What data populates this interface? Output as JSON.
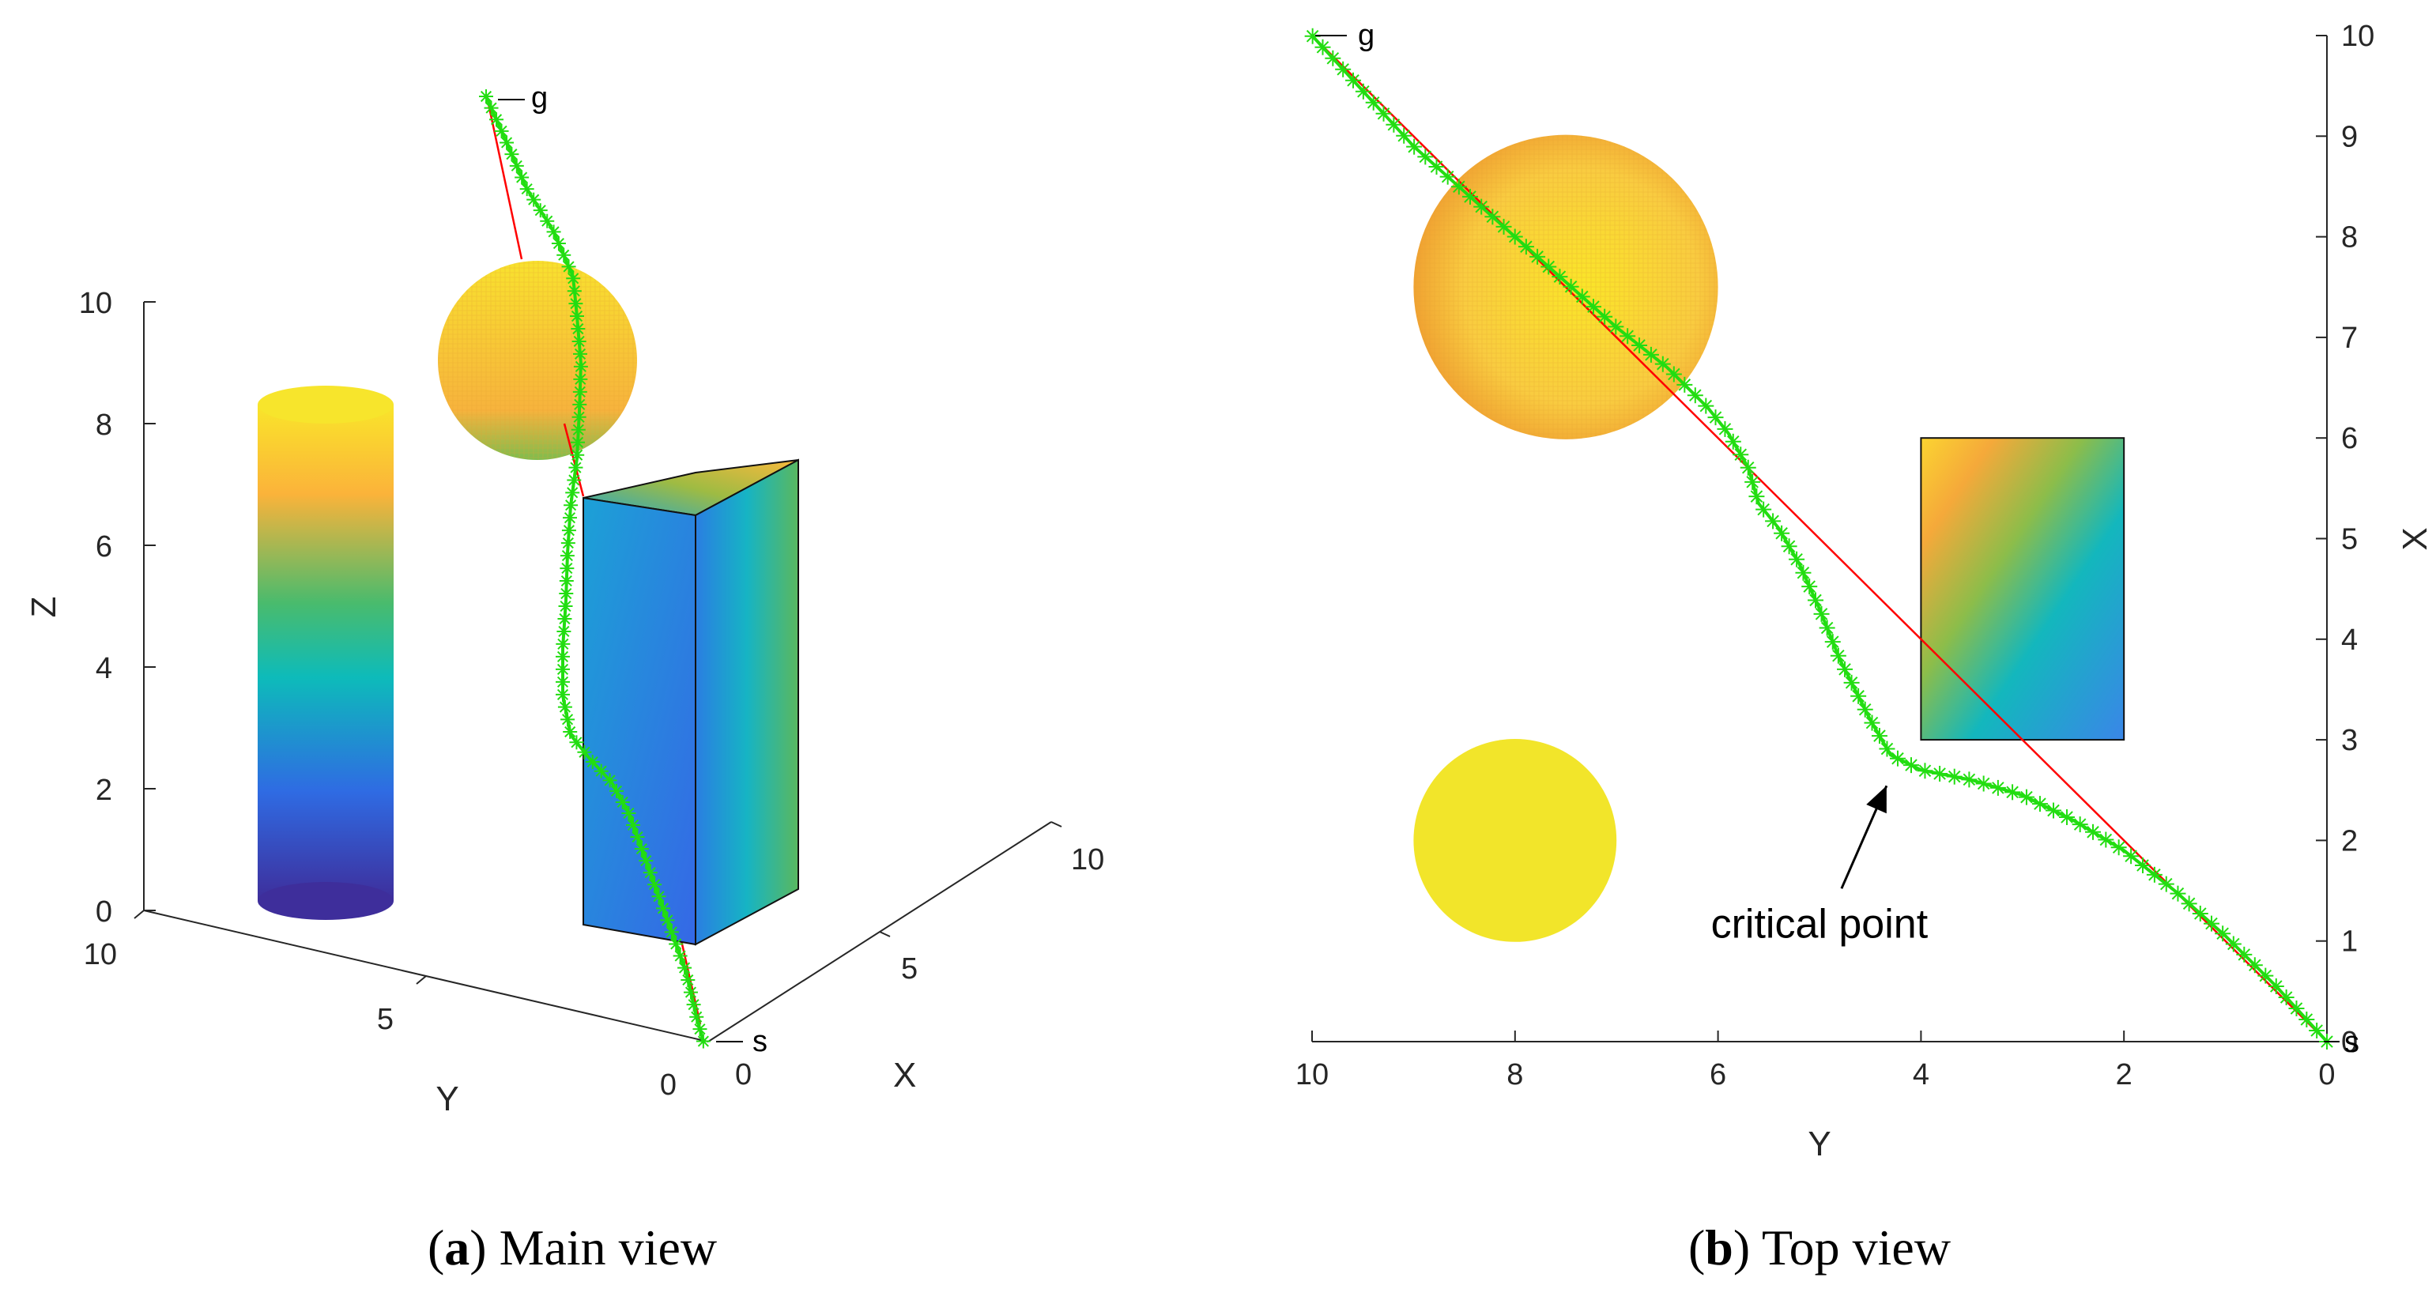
{
  "chart_data": [
    {
      "type": "scatter",
      "view": "3d-main",
      "caption": {
        "letter": "a",
        "text": "Main view"
      },
      "xlabel": "X",
      "ylabel": "Y",
      "zlabel": "Z",
      "xlim": [
        0,
        10
      ],
      "ylim": [
        0,
        10
      ],
      "zlim": [
        0,
        10
      ],
      "x_ticks": [
        "0",
        "5",
        "10"
      ],
      "y_ticks": [
        "0",
        "5",
        "10"
      ],
      "z_ticks": [
        "0",
        "2",
        "4",
        "6",
        "8",
        "10"
      ],
      "grid": false,
      "point_labels": {
        "start": "s",
        "goal": "g"
      },
      "obstacles": [
        {
          "kind": "cylinder",
          "center_x": 2,
          "center_y": 8,
          "radius": 1,
          "z_range": [
            0,
            8.5
          ]
        },
        {
          "kind": "sphere",
          "center_x": 7.5,
          "center_y": 7.5,
          "center_z": 8,
          "radius": 1.5
        },
        {
          "kind": "cuboid",
          "x_range": [
            3,
            6
          ],
          "y_range": [
            2,
            4
          ],
          "z_range": [
            0,
            7
          ]
        }
      ],
      "colors": {
        "path": "#22dd11",
        "straight_line": "#ff0000",
        "sphere": "#f5b735",
        "colormap": "parula"
      }
    },
    {
      "type": "scatter",
      "view": "top",
      "caption": {
        "letter": "b",
        "text": "Top view"
      },
      "xlabel": "Y",
      "ylabel": "X",
      "xlim": [
        10,
        0
      ],
      "ylim": [
        0,
        10
      ],
      "x_ticks": [
        "10",
        "8",
        "6",
        "4",
        "2",
        "0"
      ],
      "y_ticks": [
        "0",
        "1",
        "2",
        "3",
        "4",
        "5",
        "6",
        "7",
        "8",
        "9",
        "10"
      ],
      "grid": false,
      "annotation": {
        "text": "critical point",
        "y": 4.3,
        "x": 2.7
      },
      "point_labels": {
        "start": "s",
        "goal": "g"
      },
      "straight_line": [
        {
          "y": 0,
          "x": 0
        },
        {
          "y": 10,
          "x": 10
        }
      ],
      "path_y": [
        0,
        0.5,
        1,
        1.5,
        2,
        2.5,
        3,
        3.5,
        4,
        4.3,
        4.5,
        4.8,
        5.0,
        5.2,
        5.4,
        5.6,
        5.7,
        5.9,
        6.1,
        6.5,
        7,
        7.5,
        8,
        8.5,
        9,
        9.5,
        10
      ],
      "path_x": [
        0,
        0.55,
        1.05,
        1.5,
        1.9,
        2.2,
        2.45,
        2.6,
        2.7,
        2.85,
        3.2,
        3.8,
        4.3,
        4.75,
        5.1,
        5.35,
        5.7,
        6.05,
        6.3,
        6.7,
        7.1,
        7.55,
        8.0,
        8.45,
        8.9,
        9.45,
        10
      ],
      "obstacles": [
        {
          "kind": "circle",
          "center_y": 7.5,
          "center_x": 7.5,
          "radius": 1.5,
          "shading": "sphere"
        },
        {
          "kind": "circle",
          "center_y": 8,
          "center_x": 2,
          "radius": 1
        },
        {
          "kind": "rectangle",
          "y_range": [
            2,
            4
          ],
          "x_range": [
            3,
            6
          ]
        }
      ],
      "colors": {
        "path": "#22dd11",
        "straight_line": "#ff0000",
        "cylinder_top": "#f2e52a",
        "colormap": "parula"
      }
    }
  ]
}
